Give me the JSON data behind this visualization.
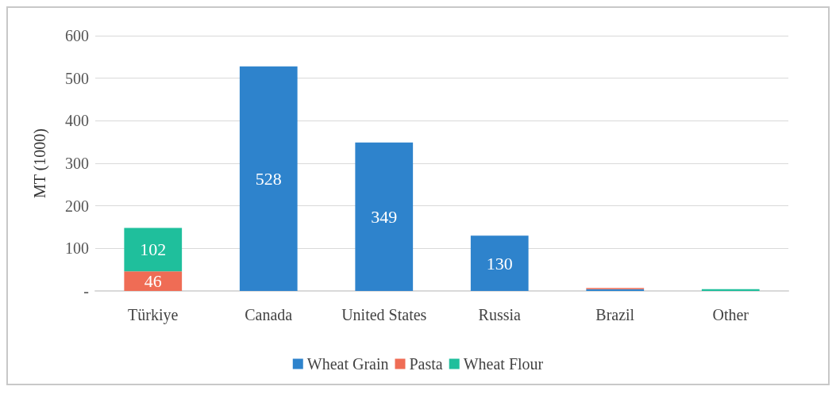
{
  "chart_data": {
    "type": "bar",
    "stacked": true,
    "ylabel": "MT (1000)",
    "categories": [
      "Türkiye",
      "Canada",
      "United States",
      "Russia",
      "Brazil",
      "Other"
    ],
    "series": [
      {
        "name": "Wheat Grain",
        "color": "#2e83cc",
        "values": [
          0,
          528,
          349,
          130,
          4,
          0
        ],
        "value_labels": [
          null,
          "528",
          "349",
          "130",
          null,
          null
        ]
      },
      {
        "name": "Pasta",
        "color": "#ef6c55",
        "values": [
          46,
          0,
          0,
          0,
          3,
          null
        ],
        "value_labels": [
          "46",
          null,
          null,
          null,
          null,
          null
        ]
      },
      {
        "name": "Wheat Flour",
        "color": "#1fbf9c",
        "values": [
          102,
          0,
          0,
          0,
          0,
          4
        ],
        "value_labels": [
          "102",
          null,
          null,
          null,
          null,
          null
        ]
      }
    ],
    "ylim": [
      0,
      600
    ],
    "yticks": [
      {
        "value": 0,
        "label": "-"
      },
      100,
      200,
      300,
      400,
      500,
      600
    ],
    "grid": "y",
    "legend": "bottom"
  }
}
